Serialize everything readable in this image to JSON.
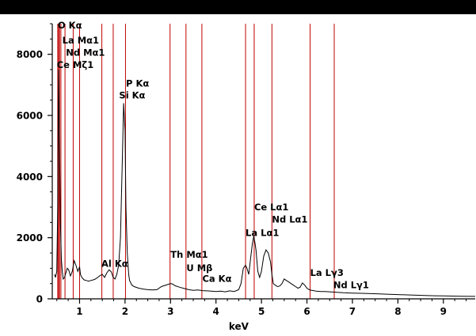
{
  "chart_data": {
    "type": "line",
    "title": "",
    "xlabel": "keV",
    "ylabel": "",
    "xlim": [
      0.4,
      9.7
    ],
    "ylim": [
      0,
      9000
    ],
    "x_ticks": [
      1,
      2,
      3,
      4,
      5,
      6,
      7,
      8,
      9
    ],
    "y_ticks": [
      0,
      2000,
      4000,
      6000,
      8000
    ],
    "grid": false,
    "line_color": "#000000",
    "marker_color": "#c00000",
    "axis_color": "#000000",
    "series": [
      {
        "x": [
          0.45,
          0.47,
          0.5,
          0.52,
          0.54,
          0.56,
          0.58,
          0.6,
          0.62,
          0.64,
          0.67,
          0.7,
          0.73,
          0.76,
          0.8,
          0.84,
          0.88,
          0.92,
          0.96,
          1.0,
          1.02,
          1.05,
          1.1,
          1.15,
          1.2,
          1.25,
          1.3,
          1.35,
          1.4,
          1.45,
          1.5,
          1.55,
          1.6,
          1.65,
          1.7,
          1.74,
          1.78,
          1.82,
          1.86,
          1.9,
          1.94,
          1.97,
          2.0,
          2.02,
          2.05,
          2.08,
          2.1,
          2.15,
          2.2,
          2.3,
          2.4,
          2.5,
          2.6,
          2.7,
          2.8,
          2.9,
          3.0,
          3.05,
          3.1,
          3.2,
          3.3,
          3.4,
          3.5,
          3.6,
          3.7,
          3.8,
          3.9,
          4.0,
          4.1,
          4.2,
          4.3,
          4.4,
          4.5,
          4.55,
          4.6,
          4.65,
          4.68,
          4.72,
          4.76,
          4.8,
          4.83,
          4.85,
          4.88,
          4.92,
          4.96,
          5.0,
          5.05,
          5.1,
          5.15,
          5.2,
          5.23,
          5.26,
          5.3,
          5.35,
          5.4,
          5.45,
          5.5,
          5.55,
          5.6,
          5.65,
          5.7,
          5.75,
          5.8,
          5.85,
          5.9,
          5.95,
          6.0,
          6.05,
          6.1,
          6.15,
          6.2,
          6.3,
          6.4,
          6.5,
          6.6,
          6.7,
          6.8,
          7.0,
          7.2,
          7.4,
          7.6,
          7.8,
          8.0,
          8.2,
          8.4,
          8.6,
          8.8,
          9.0,
          9.2,
          9.4,
          9.7
        ],
        "y": [
          800,
          700,
          900,
          3000,
          7500,
          5000,
          2500,
          1300,
          900,
          650,
          700,
          850,
          1000,
          950,
          750,
          900,
          1250,
          1100,
          900,
          1050,
          800,
          700,
          620,
          600,
          580,
          600,
          620,
          650,
          700,
          760,
          800,
          700,
          850,
          950,
          880,
          700,
          650,
          800,
          1100,
          2000,
          4500,
          6400,
          5500,
          3000,
          1500,
          800,
          600,
          450,
          400,
          350,
          320,
          300,
          290,
          300,
          400,
          450,
          500,
          480,
          430,
          380,
          340,
          300,
          280,
          290,
          270,
          260,
          250,
          240,
          250,
          230,
          260,
          240,
          300,
          500,
          1000,
          1100,
          1000,
          800,
          1300,
          1800,
          2050,
          1900,
          1600,
          900,
          700,
          900,
          1400,
          1600,
          1500,
          1200,
          800,
          500,
          450,
          400,
          420,
          500,
          650,
          600,
          550,
          500,
          450,
          400,
          350,
          380,
          520,
          450,
          350,
          300,
          280,
          270,
          250,
          240,
          240,
          230,
          220,
          210,
          200,
          190,
          180,
          170,
          160,
          150,
          140,
          130,
          120,
          110,
          100,
          95,
          90,
          85,
          80
        ],
        "name": ""
      }
    ],
    "peak_lines": [
      0.52,
      0.54,
      0.56,
      0.59,
      0.68,
      0.86,
      1.0,
      1.49,
      1.74,
      2.01,
      2.99,
      3.34,
      3.69,
      4.65,
      4.84,
      5.23,
      6.07,
      6.6
    ],
    "peak_labels": [
      {
        "text": "O Kα",
        "x": 0.52,
        "y": 8850
      },
      {
        "text": "La Mα1",
        "x": 0.62,
        "y": 8350
      },
      {
        "text": "Nd Mα1",
        "x": 0.7,
        "y": 7950
      },
      {
        "text": "Ce Mζ1",
        "x": 0.5,
        "y": 7550
      },
      {
        "text": "P Kα",
        "x": 2.02,
        "y": 6950
      },
      {
        "text": "Si Kα",
        "x": 1.87,
        "y": 6550
      },
      {
        "text": "Al Kα",
        "x": 1.48,
        "y": 1050
      },
      {
        "text": "Th Mα1",
        "x": 3.0,
        "y": 1350
      },
      {
        "text": "U Mβ",
        "x": 3.35,
        "y": 900
      },
      {
        "text": "Ca Kα",
        "x": 3.7,
        "y": 550
      },
      {
        "text": "Ce Lα1",
        "x": 4.84,
        "y": 2900
      },
      {
        "text": "Nd Lα1",
        "x": 5.23,
        "y": 2500
      },
      {
        "text": "La Lα1",
        "x": 4.65,
        "y": 2050
      },
      {
        "text": "La Lγ3",
        "x": 6.07,
        "y": 750
      },
      {
        "text": "Nd Lγ1",
        "x": 6.58,
        "y": 350
      }
    ]
  }
}
